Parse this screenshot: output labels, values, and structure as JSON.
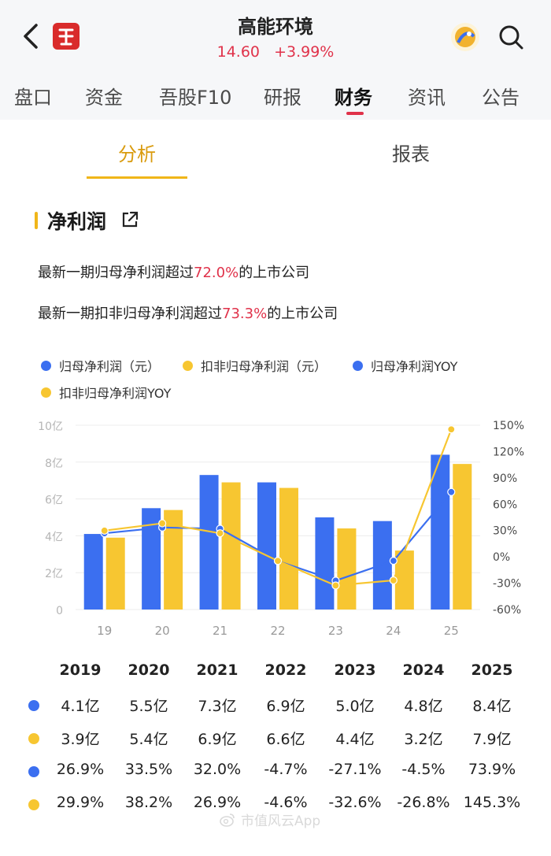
{
  "header": {
    "title": "高能环境",
    "price": "14.60",
    "change": "+3.99%"
  },
  "tabs": [
    "盘口",
    "资金",
    "吾股F10",
    "研报",
    "财务",
    "资讯",
    "公告"
  ],
  "active_tab": "财务",
  "subtabs": [
    "分析",
    "报表"
  ],
  "active_subtab": "分析",
  "section": {
    "title": "净利润",
    "stat1_prefix": "最新一期归母净利润超过",
    "stat1_value": "72.0%",
    "stat1_suffix": "的上市公司",
    "stat2_prefix": "最新一期扣非归母净利润超过",
    "stat2_value": "73.3%",
    "stat2_suffix": "的上市公司"
  },
  "legend": [
    {
      "label": "归母净利润（元）",
      "color": "#3b6ff0"
    },
    {
      "label": "扣非归母净利润（元）",
      "color": "#f7c631"
    },
    {
      "label": "归母净利润YOY",
      "color": "#3b6ff0"
    },
    {
      "label": "扣非归母净利润YOY",
      "color": "#f7c631"
    }
  ],
  "chart_data": {
    "type": "bar",
    "categories": [
      "19",
      "20",
      "21",
      "22",
      "23",
      "24",
      "25"
    ],
    "left_axis": {
      "ticks": [
        "0",
        "2亿",
        "4亿",
        "6亿",
        "8亿",
        "10亿"
      ],
      "min": 0,
      "max": 10,
      "unit": "亿"
    },
    "right_axis": {
      "ticks": [
        "-60%",
        "-30%",
        "0%",
        "30%",
        "60%",
        "90%",
        "120%",
        "150%"
      ],
      "min": -60,
      "max": 150,
      "unit": "%"
    },
    "series": [
      {
        "name": "归母净利润（元）",
        "kind": "bar",
        "axis": "left",
        "color": "#3b6ff0",
        "values": [
          4.1,
          5.5,
          7.3,
          6.9,
          5.0,
          4.8,
          8.4
        ]
      },
      {
        "name": "扣非归母净利润（元）",
        "kind": "bar",
        "axis": "left",
        "color": "#f7c631",
        "values": [
          3.9,
          5.4,
          6.9,
          6.6,
          4.4,
          3.2,
          7.9
        ]
      },
      {
        "name": "归母净利润YOY",
        "kind": "line",
        "axis": "right",
        "color": "#3b6ff0",
        "values": [
          26.9,
          33.5,
          32.0,
          -4.7,
          -27.1,
          -4.5,
          73.9
        ]
      },
      {
        "name": "扣非归母净利润YOY",
        "kind": "line",
        "axis": "right",
        "color": "#f7c631",
        "values": [
          29.9,
          38.2,
          26.9,
          -4.6,
          -32.6,
          -26.8,
          145.3
        ]
      }
    ]
  },
  "table": {
    "years": [
      "2019",
      "2020",
      "2021",
      "2022",
      "2023",
      "2024",
      "2025"
    ],
    "rows": [
      {
        "color": "#3b6ff0",
        "cells": [
          "4.1亿",
          "5.5亿",
          "7.3亿",
          "6.9亿",
          "5.0亿",
          "4.8亿",
          "8.4亿"
        ]
      },
      {
        "color": "#f7c631",
        "cells": [
          "3.9亿",
          "5.4亿",
          "6.9亿",
          "6.6亿",
          "4.4亿",
          "3.2亿",
          "7.9亿"
        ]
      },
      {
        "color": "#3b6ff0",
        "cells": [
          "26.9%",
          "33.5%",
          "32.0%",
          "-4.7%",
          "-27.1%",
          "-4.5%",
          "73.9%"
        ]
      },
      {
        "color": "#f7c631",
        "cells": [
          "29.9%",
          "38.2%",
          "26.9%",
          "-4.6%",
          "-32.6%",
          "-26.8%",
          "145.3%"
        ]
      }
    ]
  },
  "watermark": "市值风云App"
}
